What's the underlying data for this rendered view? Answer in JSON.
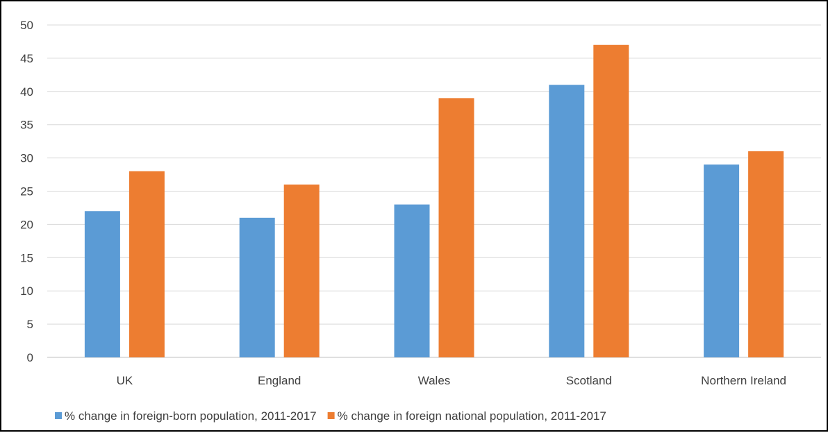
{
  "chart_data": {
    "type": "bar",
    "categories": [
      "UK",
      "England",
      "Wales",
      "Scotland",
      "Northern Ireland"
    ],
    "series": [
      {
        "name": "% change in foreign-born population, 2011-2017",
        "values": [
          22,
          21,
          23,
          41,
          29
        ],
        "color": "#5b9bd5"
      },
      {
        "name": "% change in foreign national population, 2011-2017",
        "values": [
          28,
          26,
          39,
          47,
          31
        ],
        "color": "#ed7d31"
      }
    ],
    "ylim": [
      0,
      50
    ],
    "yticks": [
      0,
      5,
      10,
      15,
      20,
      25,
      30,
      35,
      40,
      45,
      50
    ],
    "grid": true,
    "legend_position": "bottom",
    "title": "",
    "xlabel": "",
    "ylabel": ""
  }
}
